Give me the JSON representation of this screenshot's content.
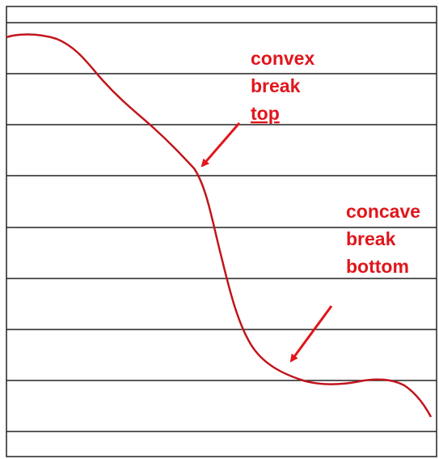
{
  "annotations": [
    {
      "lines": [
        "convex",
        "break",
        "top"
      ]
    },
    {
      "lines": [
        "concave",
        "break",
        "bottom"
      ]
    }
  ]
}
